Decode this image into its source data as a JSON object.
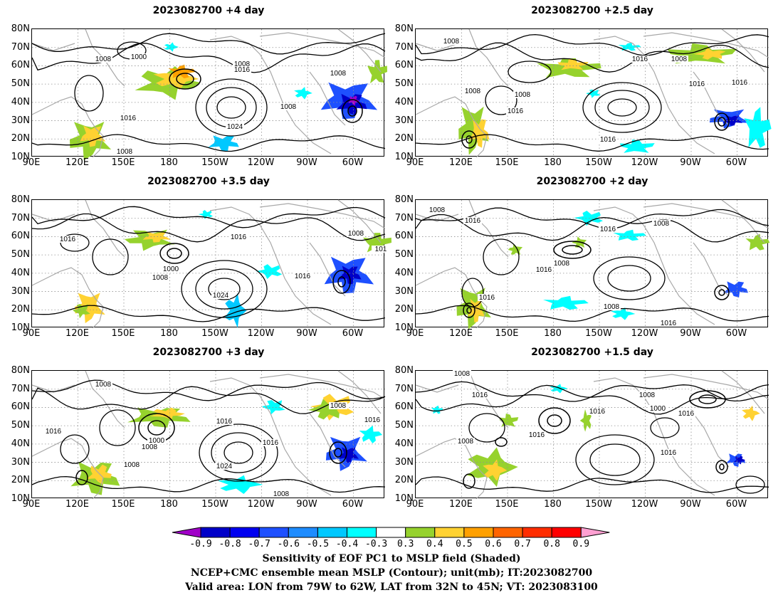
{
  "panels": [
    {
      "title": "2023082700 +4 day",
      "labels": [
        "1008",
        "1000",
        "1008",
        "1016",
        "1008",
        "1008",
        "1016",
        "1024",
        "1008"
      ]
    },
    {
      "title": "2023082700 +2.5 day",
      "labels": [
        "1008",
        "1016",
        "1008",
        "1008",
        "1016",
        "1008",
        "1016",
        "1016",
        "1016"
      ]
    },
    {
      "title": "2023082700 +3.5 day",
      "labels": [
        "1016",
        "1016",
        "1000",
        "1008",
        "1008",
        "1016",
        "1024",
        "101"
      ]
    },
    {
      "title": "2023082700 +2 day",
      "labels": [
        "1008",
        "1016",
        "1016",
        "1008",
        "1016",
        "1008",
        "1016",
        "1008",
        "1016"
      ]
    },
    {
      "title": "2023082700 +3 day",
      "labels": [
        "1008",
        "1016",
        "1016",
        "1000",
        "1008",
        "1016",
        "1008",
        "1024",
        "1008",
        "1016",
        "1008"
      ]
    },
    {
      "title": "2023082700 +1.5 day",
      "labels": [
        "1008",
        "1016",
        "1008",
        "1016",
        "1016",
        "1000",
        "1016",
        "1016",
        "1008"
      ]
    }
  ],
  "y_ticks": [
    "80N",
    "70N",
    "60N",
    "50N",
    "40N",
    "30N",
    "20N",
    "10N"
  ],
  "x_ticks": [
    "90E",
    "120E",
    "150E",
    "180",
    "150W",
    "120W",
    "90W",
    "60W"
  ],
  "colorbar": {
    "labels": [
      "-0.9",
      "-0.8",
      "-0.7",
      "-0.6",
      "-0.5",
      "-0.4",
      "-0.3",
      "0.3",
      "0.4",
      "0.5",
      "0.6",
      "0.7",
      "0.8",
      "0.9"
    ],
    "colors": [
      "#a000c8",
      "#0000c8",
      "#0000f0",
      "#1e50ff",
      "#1e8cff",
      "#00c8ff",
      "#00ffff",
      "#ffffff",
      "#96d22d",
      "#ffd232",
      "#ffa000",
      "#ff6400",
      "#ff2d00",
      "#ff0000",
      "#ffa0d2"
    ]
  },
  "caption": {
    "line1": "Sensitivity of EOF PC1 to MSLP field (Shaded)",
    "line2": "NCEP+CMC ensemble mean MSLP (Contour); unit(mb); IT:2023082700",
    "line3": "Valid area: LON from 79W to 62W, LAT from 32N to 45N; VT: 2023083100"
  }
}
